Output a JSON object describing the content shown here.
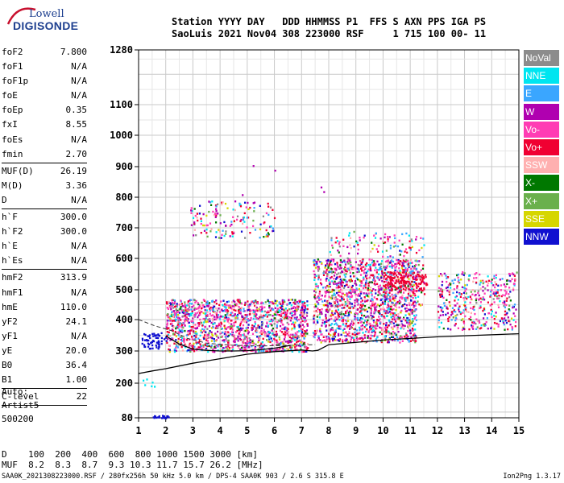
{
  "logo": {
    "line1": "Lowell",
    "line2": "DIGISONDE"
  },
  "header": {
    "line1": "Station YYYY DAY   DDD HHMMSS P1  FFS S AXN PPS IGA PS",
    "line2": "SaoLuis 2021 Nov04 308 223000 RSF     1 715 100 00- 11"
  },
  "params": {
    "group1": [
      {
        "k": "foF2",
        "v": "7.800"
      },
      {
        "k": "foF1",
        "v": "N/A"
      },
      {
        "k": "foF1p",
        "v": "N/A"
      },
      {
        "k": "foE",
        "v": "N/A"
      },
      {
        "k": "foEp",
        "v": "0.35"
      },
      {
        "k": "fxI",
        "v": "8.55"
      },
      {
        "k": "foEs",
        "v": "N/A"
      },
      {
        "k": "fmin",
        "v": "2.70"
      }
    ],
    "group2": [
      {
        "k": "MUF(D)",
        "v": "26.19"
      },
      {
        "k": "M(D)",
        "v": "3.36"
      },
      {
        "k": "D",
        "v": "N/A"
      }
    ],
    "group3": [
      {
        "k": "h`F",
        "v": "300.0"
      },
      {
        "k": "h`F2",
        "v": "300.0"
      },
      {
        "k": "h`E",
        "v": "N/A"
      },
      {
        "k": "h`Es",
        "v": "N/A"
      }
    ],
    "group4": [
      {
        "k": "hmF2",
        "v": "313.9"
      },
      {
        "k": "hmF1",
        "v": "N/A"
      },
      {
        "k": "hmE",
        "v": "110.0"
      },
      {
        "k": "yF2",
        "v": "24.1"
      },
      {
        "k": "yF1",
        "v": "N/A"
      },
      {
        "k": "yE",
        "v": "20.0"
      },
      {
        "k": "B0",
        "v": "36.4"
      },
      {
        "k": "B1",
        "v": "1.00"
      }
    ],
    "group5": [
      {
        "k": "C-level",
        "v": "22"
      }
    ]
  },
  "auto": {
    "line1": "Auto:",
    "line2": "Artist5",
    "line3": "500200"
  },
  "legend": [
    {
      "label": "NoVal",
      "color": "#8c8c8c"
    },
    {
      "label": "NNE",
      "color": "#00e5f0"
    },
    {
      "label": "E",
      "color": "#3aa6ff"
    },
    {
      "label": "W",
      "color": "#b000b0"
    },
    {
      "label": "Vo-",
      "color": "#ff3cb4"
    },
    {
      "label": "Vo+",
      "color": "#f00032"
    },
    {
      "label": "SSW",
      "color": "#ffb0b0"
    },
    {
      "label": "X-",
      "color": "#007800"
    },
    {
      "label": "X+",
      "color": "#6ab04c"
    },
    {
      "label": "SSE",
      "color": "#d6d600"
    },
    {
      "label": "NNW",
      "color": "#1010d0"
    }
  ],
  "muf_table": {
    "d_label": "D",
    "d_values": [
      "100",
      "200",
      "400",
      "600",
      "800",
      "1000",
      "1500",
      "3000"
    ],
    "d_unit": "[km]",
    "muf_label": "MUF",
    "muf_values": [
      "8.2",
      "8.3",
      "8.7",
      "9.3",
      "10.3",
      "11.7",
      "15.7",
      "26.2"
    ],
    "muf_unit": "[MHz]"
  },
  "footer": "SAA0K_2021308223000.RSF / 280fx256h 50 kHz 5.0 km / DPS-4 SAA0K 903 / 2.6 S 315.8 E",
  "version": "Ion2Png 1.3.17",
  "chart_data": {
    "type": "scatter",
    "xlim": [
      1,
      15
    ],
    "ylim": [
      80,
      1280
    ],
    "x_ticks": [
      1,
      2,
      3,
      4,
      5,
      6,
      7,
      8,
      9,
      10,
      11,
      12,
      13,
      14,
      15
    ],
    "y_ticks": [
      80,
      200,
      300,
      400,
      500,
      600,
      700,
      800,
      900,
      1000,
      1100,
      1280
    ],
    "y_scale": "ionogram-nonlinear",
    "grid": true,
    "legend_placement": "right",
    "clusters": [
      {
        "x": [
          1.45,
          2.1
        ],
        "y": [
          80,
          90
        ],
        "class": "NNW",
        "n": 22
      },
      {
        "x": [
          1.1,
          2.0
        ],
        "y": [
          310,
          360
        ],
        "class": "NNW",
        "n": 60
      },
      {
        "x": [
          1.1,
          1.6
        ],
        "y": [
          180,
          215
        ],
        "class": "NNE",
        "n": 6
      },
      {
        "x": [
          2.0,
          7.2
        ],
        "y": [
          300,
          470
        ],
        "class": "mix",
        "n": 1500
      },
      {
        "x": [
          7.4,
          11.2
        ],
        "y": [
          330,
          600
        ],
        "class": "mix",
        "n": 1400
      },
      {
        "x": [
          8.0,
          11.5
        ],
        "y": [
          450,
          690
        ],
        "class": "mix",
        "n": 300
      },
      {
        "x": [
          10.0,
          11.6
        ],
        "y": [
          500,
          560
        ],
        "class": "Vo+",
        "n": 140
      },
      {
        "x": [
          2.9,
          6.0
        ],
        "y": [
          670,
          790
        ],
        "class": "mix",
        "n": 150
      },
      {
        "x": [
          12.0,
          14.9
        ],
        "y": [
          370,
          560
        ],
        "class": "mix",
        "n": 400
      }
    ],
    "traces": [
      {
        "name": "",
        "x": [
          1.0,
          1.5,
          2.0,
          3.0,
          4.0,
          5.0,
          6.0,
          7.0,
          7.4,
          7.6,
          8.0,
          10.0,
          12.0,
          15.0
        ],
        "y": [
          230,
          238,
          245,
          262,
          276,
          290,
          298,
          303,
          300,
          302,
          320,
          335,
          345,
          355
        ]
      },
      {
        "name": "",
        "x": [
          1.0,
          1.6,
          2.2,
          2.8,
          3.5,
          4.5,
          5.5,
          6.5,
          7.5
        ],
        "y": [
          400,
          380,
          365,
          340,
          325,
          318,
          316,
          318,
          320
        ]
      },
      {
        "name": "",
        "x": [
          2.0,
          2.5,
          3.0,
          3.5,
          4.0,
          4.5,
          5.0,
          5.5,
          6.0,
          6.6
        ],
        "y": [
          348,
          322,
          306,
          302,
          300,
          300,
          301,
          304,
          309,
          318
        ]
      }
    ],
    "outliers": [
      {
        "x": 5.2,
        "y": 905
      },
      {
        "x": 6.0,
        "y": 890
      },
      {
        "x": 7.7,
        "y": 835
      },
      {
        "x": 7.8,
        "y": 820
      },
      {
        "x": 2.9,
        "y": 760
      },
      {
        "x": 4.8,
        "y": 810
      }
    ]
  }
}
